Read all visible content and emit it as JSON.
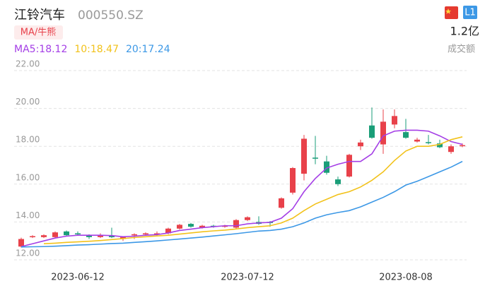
{
  "header": {
    "name": "江铃汽车",
    "code": "000550.SZ",
    "indicator": "MA/牛熊",
    "badge": "L1",
    "volume": "1.2亿",
    "volume_label": "成交额"
  },
  "chart_data": {
    "type": "candlestick",
    "categories": [
      "",
      "",
      "",
      "",
      "",
      "2023-06-12",
      "",
      "",
      "",
      "",
      "",
      "",
      "",
      "",
      "",
      "",
      "",
      "",
      "",
      "",
      "2023-07-12",
      "",
      "",
      "",
      "",
      "",
      "",
      "",
      "",
      "",
      "",
      "",
      "",
      "",
      "2023-08-08",
      "",
      "",
      "",
      "",
      ""
    ],
    "open": [
      12.7,
      13.2,
      13.2,
      13.2,
      13.5,
      13.4,
      13.3,
      13.2,
      13.25,
      13.1,
      13.3,
      13.35,
      13.35,
      13.4,
      13.65,
      13.9,
      13.7,
      13.8,
      13.75,
      13.7,
      14.1,
      14.0,
      14.0,
      14.75,
      15.55,
      16.55,
      17.4,
      17.2,
      16.25,
      16.4,
      18.0,
      19.1,
      18.1,
      19.15,
      18.75,
      18.25,
      18.22,
      18.15,
      17.7,
      18.05
    ],
    "high": [
      13.17,
      13.3,
      13.35,
      13.5,
      13.55,
      13.5,
      13.35,
      13.4,
      13.7,
      13.25,
      13.4,
      13.45,
      13.5,
      13.7,
      13.9,
      13.95,
      13.85,
      13.85,
      13.85,
      14.15,
      14.3,
      14.3,
      14.05,
      15.3,
      16.9,
      18.6,
      18.55,
      17.5,
      16.4,
      17.6,
      18.35,
      20.05,
      19.95,
      19.95,
      19.45,
      18.45,
      18.6,
      18.35,
      18.1,
      18.15
    ],
    "low": [
      12.65,
      13.15,
      13.15,
      13.15,
      13.25,
      13.3,
      13.1,
      13.15,
      13.15,
      13.0,
      13.1,
      13.3,
      13.25,
      13.35,
      13.6,
      13.7,
      13.65,
      13.7,
      13.7,
      13.65,
      14.05,
      13.85,
      13.75,
      14.7,
      15.45,
      16.2,
      17.05,
      16.5,
      15.9,
      16.35,
      17.8,
      18.4,
      17.6,
      18.95,
      18.4,
      18.2,
      18.1,
      17.9,
      17.6,
      17.95
    ],
    "close": [
      13.1,
      13.25,
      13.3,
      13.45,
      13.3,
      13.35,
      13.2,
      13.3,
      13.2,
      13.2,
      13.35,
      13.4,
      13.4,
      13.65,
      13.85,
      13.75,
      13.8,
      13.75,
      13.8,
      14.1,
      14.25,
      13.9,
      13.95,
      15.25,
      16.85,
      18.4,
      17.35,
      16.6,
      16.0,
      17.55,
      18.2,
      18.45,
      19.3,
      19.6,
      18.45,
      18.35,
      18.18,
      17.95,
      18.0,
      18.06
    ],
    "up_color": "#e8414a",
    "down_color": "#1a9e78",
    "series": [
      {
        "name": "MA5:18.12",
        "color": "#a43ee6",
        "values": [
          12.7,
          12.85,
          13.0,
          13.15,
          13.25,
          13.3,
          13.3,
          13.3,
          13.28,
          13.22,
          13.25,
          13.3,
          13.33,
          13.42,
          13.55,
          13.62,
          13.7,
          13.75,
          13.8,
          13.8,
          13.9,
          13.95,
          13.98,
          14.2,
          14.7,
          15.6,
          16.3,
          16.85,
          17.05,
          17.2,
          17.2,
          17.6,
          18.55,
          18.8,
          18.85,
          18.85,
          18.8,
          18.55,
          18.25,
          18.1
        ]
      },
      {
        "name": "10:18.47",
        "color": "#f2c21b",
        "values": [
          null,
          null,
          12.85,
          12.88,
          12.92,
          12.95,
          12.98,
          13.02,
          13.07,
          13.12,
          13.18,
          13.22,
          13.26,
          13.3,
          13.36,
          13.42,
          13.48,
          13.53,
          13.57,
          13.63,
          13.7,
          13.75,
          13.8,
          13.95,
          14.2,
          14.6,
          14.95,
          15.2,
          15.45,
          15.6,
          15.85,
          16.2,
          16.65,
          17.25,
          17.75,
          18.0,
          18.0,
          18.1,
          18.35,
          18.5
        ]
      },
      {
        "name": "20:17.24",
        "color": "#3c98e6",
        "values": [
          12.68,
          12.69,
          12.7,
          12.72,
          12.75,
          12.78,
          12.8,
          12.83,
          12.86,
          12.88,
          12.92,
          12.96,
          13.0,
          13.05,
          13.1,
          13.15,
          13.2,
          13.26,
          13.32,
          13.38,
          13.45,
          13.52,
          13.55,
          13.62,
          13.75,
          13.95,
          14.2,
          14.38,
          14.5,
          14.6,
          14.8,
          15.05,
          15.3,
          15.6,
          15.95,
          16.15,
          16.4,
          16.65,
          16.9,
          17.2
        ]
      }
    ],
    "ylim": [
      12,
      22
    ],
    "yticks": [
      {
        "value": 12,
        "label": "12.00"
      },
      {
        "value": 14,
        "label": "14.00"
      },
      {
        "value": 16,
        "label": "16.00"
      },
      {
        "value": 18,
        "label": "18.00"
      },
      {
        "value": 20,
        "label": "20.00"
      },
      {
        "value": 22,
        "label": "22.00"
      }
    ],
    "grid": true
  }
}
